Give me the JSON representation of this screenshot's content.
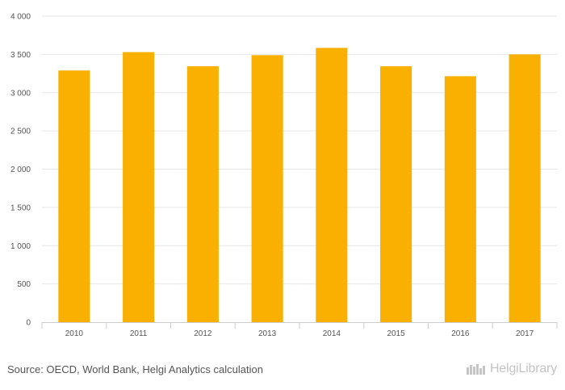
{
  "chart_data": {
    "type": "bar",
    "categories": [
      "2010",
      "2011",
      "2012",
      "2013",
      "2014",
      "2015",
      "2016",
      "2017"
    ],
    "values": [
      3290,
      3530,
      3345,
      3490,
      3585,
      3345,
      3215,
      3500
    ],
    "title": "",
    "xlabel": "",
    "ylabel": "",
    "ylim": [
      0,
      4000
    ],
    "yticks": [
      0,
      500,
      1000,
      1500,
      2000,
      2500,
      3000,
      3500,
      4000
    ],
    "ytick_labels": [
      "0",
      "500",
      "1 000",
      "1 500",
      "2 000",
      "2 500",
      "3 000",
      "3 500",
      "4 000"
    ],
    "grid": true,
    "bar_color": "#f9b000"
  },
  "footer": {
    "source": "Source: OECD, World Bank, Helgi Analytics calculation",
    "brand": "HelgiLibrary"
  }
}
